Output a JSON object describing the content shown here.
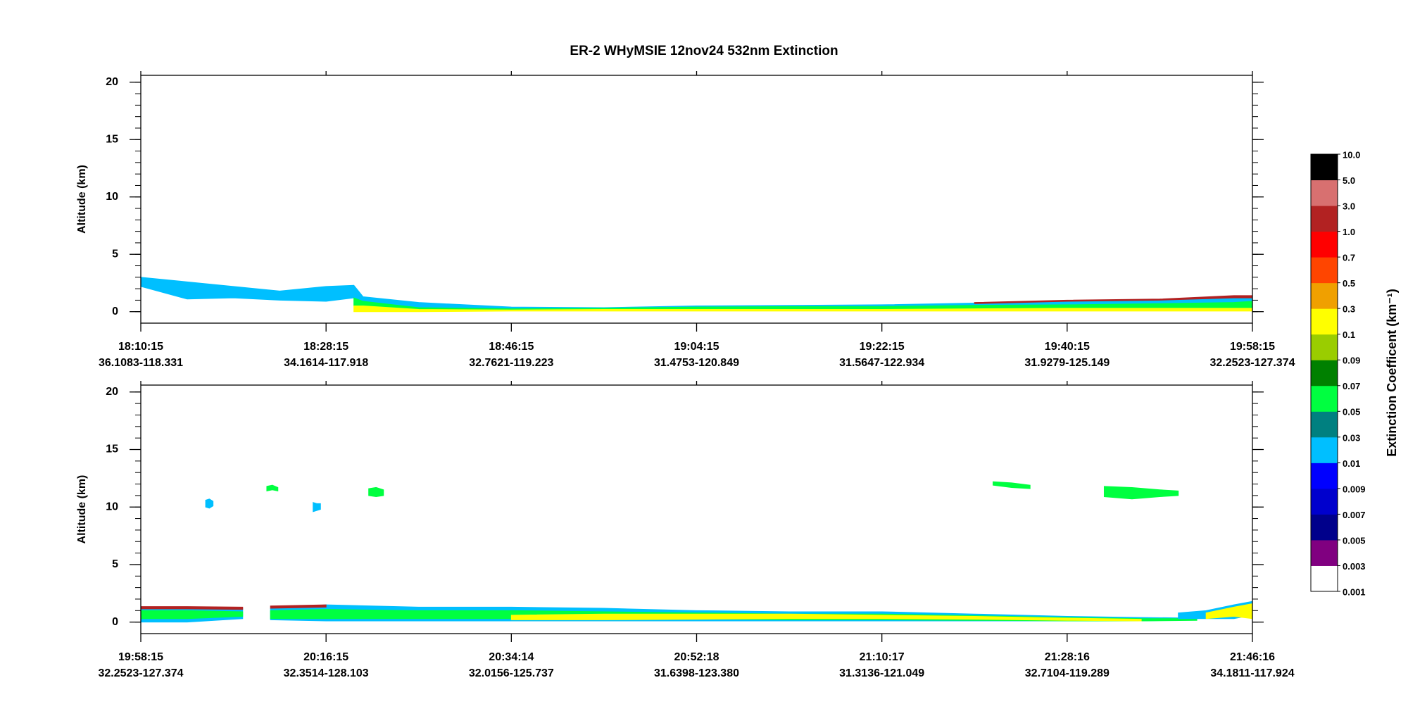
{
  "chart_data": [
    {
      "type": "curtain",
      "title": "ER-2  WHyMSIE  12nov24  532nm Extinction",
      "ylabel": "Altitude (km)",
      "xlim": [
        0,
        6
      ],
      "xticks": [
        {
          "value": 0,
          "label": "18:10:15",
          "location": "36.1083-118.331"
        },
        {
          "value": 1,
          "label": "18:28:15",
          "location": "34.1614-117.918"
        },
        {
          "value": 2,
          "label": "18:46:15",
          "location": "32.7621-119.223"
        },
        {
          "value": 3,
          "label": "19:04:15",
          "location": "31.4753-120.849"
        },
        {
          "value": 4,
          "label": "19:22:15",
          "location": "31.5647-122.934"
        },
        {
          "value": 5,
          "label": "19:40:15",
          "location": "31.9279-125.149"
        },
        {
          "value": 6,
          "label": "19:58:15",
          "location": "32.2523-127.374"
        }
      ],
      "ylim": [
        -1,
        20.6
      ],
      "yticks": [
        0,
        5,
        10,
        15,
        20
      ],
      "yminor": 1,
      "layers": [
        {
          "color": "#00bfff",
          "x": [
            0,
            0.25,
            0.5,
            0.75,
            1.0,
            1.15,
            1.2,
            1.5,
            2,
            2.5,
            3,
            3.5,
            4,
            4.5,
            5,
            5.5,
            5.9,
            6
          ],
          "top": [
            3,
            2.6,
            2.2,
            1.8,
            2.2,
            2.3,
            1.3,
            0.8,
            0.4,
            0.35,
            0.5,
            0.55,
            0.6,
            0.75,
            0.95,
            1.05,
            1.3,
            1.3
          ],
          "bottom": [
            2.2,
            1.1,
            1.2,
            1.0,
            0.9,
            1.2,
            0.9,
            0.3,
            0.25,
            0.3,
            0.4,
            0.45,
            0.45,
            0.55,
            0.6,
            0.7,
            0.8,
            0.9
          ]
        },
        {
          "color": "#00ff40",
          "x": [
            1.15,
            1.2,
            1.5,
            2,
            2.5,
            3,
            3.5,
            4,
            4.5,
            5,
            5.5,
            5.9,
            6
          ],
          "top": [
            1.2,
            0.9,
            0.35,
            0.25,
            0.3,
            0.4,
            0.45,
            0.45,
            0.55,
            0.6,
            0.7,
            0.8,
            0.9
          ],
          "bottom": [
            0.5,
            0.5,
            0.2,
            0.15,
            0.2,
            0.2,
            0.2,
            0.2,
            0.25,
            0.3,
            0.3,
            0.3,
            0.3
          ]
        },
        {
          "color": "#ffff00",
          "x": [
            1.15,
            1.2,
            1.5,
            2,
            2.5,
            3,
            3.5,
            4,
            4.5,
            5,
            5.5,
            5.9,
            6
          ],
          "top": [
            0.5,
            0.5,
            0.2,
            0.15,
            0.2,
            0.2,
            0.2,
            0.2,
            0.25,
            0.3,
            0.3,
            0.3,
            0.3
          ],
          "bottom": [
            0,
            0,
            0,
            0.05,
            0.05,
            0.05,
            0.05,
            0.05,
            0.05,
            0.05,
            0.05,
            0.05,
            0.05
          ]
        },
        {
          "color": "#b22222",
          "x": [
            4.5,
            5,
            5.5,
            5.9,
            6
          ],
          "top": [
            0.8,
            1.0,
            1.1,
            1.4,
            1.4
          ],
          "bottom": [
            0.7,
            0.9,
            1.0,
            1.2,
            1.2
          ]
        }
      ]
    },
    {
      "type": "curtain",
      "ylabel": "Altitude (km)",
      "xlim": [
        0,
        6
      ],
      "xticks": [
        {
          "value": 0,
          "label": "19:58:15",
          "location": "32.2523-127.374"
        },
        {
          "value": 1,
          "label": "20:16:15",
          "location": "32.3514-128.103"
        },
        {
          "value": 2,
          "label": "20:34:14",
          "location": "32.0156-125.737"
        },
        {
          "value": 3,
          "label": "20:52:18",
          "location": "31.6398-123.380"
        },
        {
          "value": 4,
          "label": "21:10:17",
          "location": "31.3136-121.049"
        },
        {
          "value": 5,
          "label": "21:28:16",
          "location": "32.7104-119.289"
        },
        {
          "value": 6,
          "label": "21:46:16",
          "location": "34.1811-117.924"
        }
      ],
      "ylim": [
        -1,
        20.6
      ],
      "yticks": [
        0,
        5,
        10,
        15,
        20
      ],
      "yminor": 1,
      "layers": [
        {
          "color": "#00bfff",
          "x": [
            0,
            0.25,
            0.55,
            0.6,
            0.7,
            1,
            1.5,
            2,
            2.5,
            3,
            3.5,
            4,
            4.5,
            5,
            5.4,
            5.7
          ],
          "top": [
            1.3,
            1.3,
            1.2,
            null,
            1.2,
            1.5,
            1.3,
            1.3,
            1.2,
            1.0,
            0.9,
            0.9,
            0.7,
            0.5,
            0.4,
            0.35
          ],
          "bottom": [
            0,
            0,
            0.3,
            null,
            0.2,
            0.1,
            0.1,
            0.1,
            0.1,
            0.1,
            0.1,
            0.1,
            0.1,
            0.1,
            0.1,
            0.2
          ]
        },
        {
          "color": "#00ff40",
          "x": [
            0,
            0.25,
            0.55,
            0.6,
            0.7,
            1,
            1.5,
            2,
            2.5,
            3,
            3.5,
            4,
            4.5,
            5,
            5.4,
            5.7
          ],
          "top": [
            1.0,
            1.0,
            0.9,
            null,
            1.0,
            1.1,
            1.0,
            1.0,
            0.9,
            0.8,
            0.7,
            0.7,
            0.55,
            0.4,
            0.3,
            0.3
          ],
          "bottom": [
            0.3,
            0.3,
            0.5,
            null,
            0.3,
            0.3,
            0.3,
            0.3,
            0.3,
            0.3,
            0.2,
            0.2,
            0.15,
            0.1,
            0.1,
            0.15
          ]
        },
        {
          "color": "#ffff00",
          "x": [
            2,
            2.5,
            3,
            3.5,
            4,
            4.5,
            5,
            5.4
          ],
          "top": [
            0.6,
            0.7,
            0.7,
            0.7,
            0.6,
            0.5,
            0.35,
            0.25
          ],
          "bottom": [
            0.2,
            0.2,
            0.25,
            0.3,
            0.3,
            0.25,
            0.15,
            0.1
          ]
        },
        {
          "color": "#b22222",
          "x": [
            0,
            0.25,
            0.55,
            0.6,
            0.7,
            1
          ],
          "top": [
            1.35,
            1.35,
            1.3,
            null,
            1.4,
            1.5
          ],
          "bottom": [
            1.15,
            1.15,
            1.1,
            null,
            1.2,
            1.3
          ]
        },
        {
          "color": "#00bfff",
          "x": [
            5.6,
            5.75,
            5.9,
            6
          ],
          "top": [
            0.8,
            1.0,
            1.5,
            1.8
          ],
          "bottom": [
            0.3,
            0.3,
            0.3,
            0.6
          ]
        },
        {
          "color": "#ffff00",
          "x": [
            5.75,
            5.9,
            6
          ],
          "top": [
            0.8,
            1.3,
            1.6
          ],
          "bottom": [
            0.3,
            0.5,
            0.3
          ]
        },
        {
          "color": "#00bfff",
          "x": [
            0.35,
            0.37,
            0.39
          ],
          "top": [
            10.6,
            10.7,
            10.5
          ],
          "bottom": [
            10.0,
            9.9,
            10.1
          ]
        },
        {
          "color": "#00ff40",
          "x": [
            0.68,
            0.71,
            0.74
          ],
          "top": [
            11.8,
            11.9,
            11.7
          ],
          "bottom": [
            11.4,
            11.5,
            11.4
          ]
        },
        {
          "color": "#00bfff",
          "x": [
            0.93,
            0.95,
            0.97
          ],
          "top": [
            10.4,
            10.3,
            10.3
          ],
          "bottom": [
            9.6,
            9.7,
            9.8
          ]
        },
        {
          "color": "#00ff40",
          "x": [
            1.23,
            1.27,
            1.31
          ],
          "top": [
            11.6,
            11.7,
            11.5
          ],
          "bottom": [
            11.0,
            10.9,
            11.0
          ]
        },
        {
          "color": "#00ff40",
          "x": [
            4.6,
            4.7,
            4.8
          ],
          "top": [
            12.2,
            12.1,
            11.9
          ],
          "bottom": [
            11.9,
            11.7,
            11.6
          ]
        },
        {
          "color": "#00ff40",
          "x": [
            5.2,
            5.35,
            5.5,
            5.6
          ],
          "top": [
            11.8,
            11.7,
            11.5,
            11.4
          ],
          "bottom": [
            10.9,
            10.7,
            10.9,
            11.0
          ]
        }
      ]
    },
    {
      "type": "colorbar",
      "label": "Extinction Coefficent (km⁻¹)",
      "colors": [
        "#ffffff",
        "#800080",
        "#00008b",
        "#0000cd",
        "#0000ff",
        "#00bfff",
        "#008080",
        "#00ff40",
        "#008000",
        "#9acd00",
        "#ffff00",
        "#f0a000",
        "#ff4500",
        "#ff0000",
        "#b22222",
        "#d87070",
        "#000000"
      ],
      "ticks": [
        0.001,
        0.003,
        0.005,
        0.007,
        0.009,
        0.01,
        0.03,
        0.05,
        0.07,
        0.09,
        0.1,
        0.3,
        0.5,
        0.7,
        {
          "value": 1,
          "label": "1.0"
        },
        {
          "value": 3,
          "label": "3.0"
        },
        {
          "value": 5,
          "label": "5.0"
        },
        {
          "value": 10,
          "label": "10.0"
        }
      ]
    }
  ]
}
